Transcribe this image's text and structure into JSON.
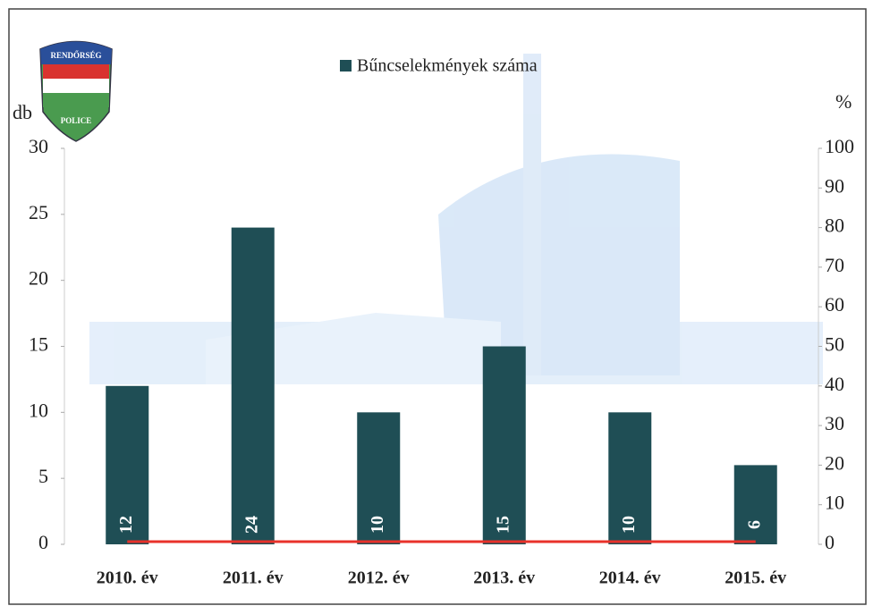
{
  "logo": {
    "top": "RENDŐRSÉG",
    "bottom": "POLICE"
  },
  "chart_data": {
    "type": "bar",
    "y_label": "db",
    "y2_label": "%",
    "categories": [
      "2010. év",
      "2011. év",
      "2012. év",
      "2013. év",
      "2014. év",
      "2015. év"
    ],
    "series": [
      {
        "name": "Bűncselekmények száma",
        "color": "#1f4e55",
        "values": [
          12,
          24,
          10,
          15,
          10,
          6
        ]
      },
      {
        "type": "line",
        "color": "#e8322a",
        "axis": "y2",
        "values": [
          0,
          0,
          0,
          0,
          0,
          0
        ]
      }
    ],
    "ylim": [
      0,
      30
    ],
    "yticks": [
      0,
      5,
      10,
      15,
      20,
      25,
      30
    ],
    "y2lim": [
      0,
      100
    ],
    "y2ticks": [
      0,
      10,
      20,
      30,
      40,
      50,
      60,
      70,
      80,
      90,
      100
    ],
    "legend": "top",
    "grid": false
  }
}
